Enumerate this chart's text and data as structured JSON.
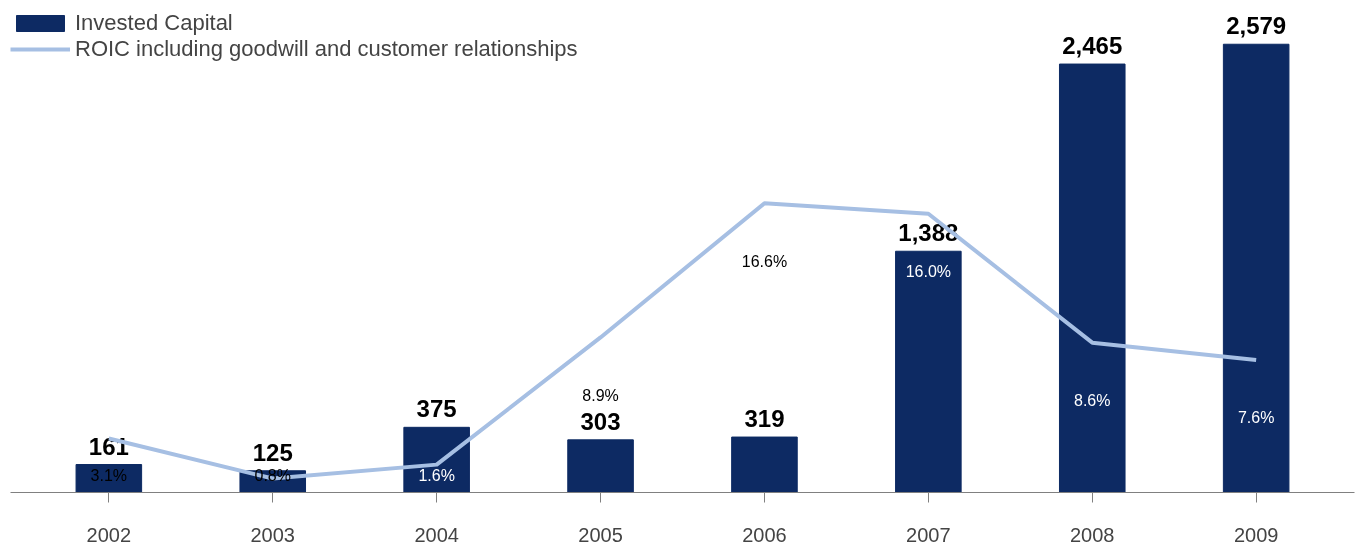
{
  "chart_data": {
    "type": "bar",
    "categories": [
      "2002",
      "2003",
      "2004",
      "2005",
      "2006",
      "2007",
      "2008",
      "2009"
    ],
    "series": [
      {
        "name": "Invested Capital",
        "color": "#0d2a63",
        "values": [
          161,
          125,
          375,
          303,
          319,
          1388,
          2465,
          2579
        ],
        "value_labels": [
          "161",
          "125",
          "375",
          "303",
          "319",
          "1,388",
          "2,465",
          "2,579"
        ]
      },
      {
        "name": "ROIC including goodwill and customer relationships",
        "type": "line",
        "axis": "y2",
        "color": "#a6bfe3",
        "values": [
          3.1,
          0.8,
          1.6,
          8.9,
          16.6,
          16.0,
          8.6,
          7.6
        ],
        "value_labels": [
          "3.1%",
          "0.8%",
          "1.6%",
          "8.9%",
          "16.6%",
          "16.0%",
          "8.6%",
          "7.6%"
        ]
      }
    ],
    "tick_labels": "x",
    "legend": "top left",
    "grid": false
  }
}
